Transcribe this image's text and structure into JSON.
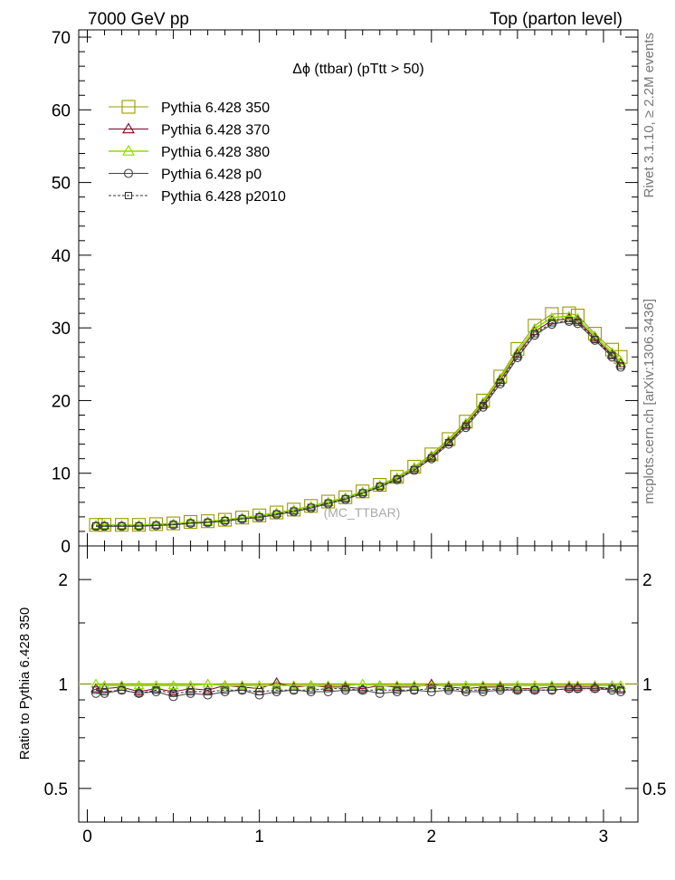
{
  "header": {
    "left": "7000 GeV pp",
    "right": "Top (parton level)"
  },
  "side_labels": {
    "rivet": "Rivet 3.1.10, ≥ 2.2M events",
    "mcplots": "mcplots.cern.ch [arXiv:1306.3436]"
  },
  "colors": {
    "s350": "#999900",
    "s370": "#800020",
    "s380": "#88dd00",
    "p0": "#444444",
    "p2010": "#333333"
  },
  "chart_data": [
    {
      "type": "line",
      "title": "Δϕ (ttbar) (pTtt > 50)",
      "watermark": "(MC_TTBAR)",
      "xlim": [
        -0.05,
        3.2
      ],
      "ylim": [
        0,
        71
      ],
      "yticks": [
        0,
        10,
        20,
        30,
        40,
        50,
        60,
        70
      ],
      "x": [
        0.05,
        0.1,
        0.2,
        0.3,
        0.4,
        0.5,
        0.6,
        0.7,
        0.8,
        0.9,
        1.0,
        1.1,
        1.2,
        1.3,
        1.4,
        1.5,
        1.6,
        1.7,
        1.8,
        1.9,
        2.0,
        2.1,
        2.2,
        2.3,
        2.4,
        2.5,
        2.6,
        2.7,
        2.8,
        2.85,
        2.95,
        3.05,
        3.1
      ],
      "legend": [
        "Pythia 6.428 350",
        "Pythia 6.428 370",
        "Pythia 6.428 380",
        "Pythia 6.428 p0",
        "Pythia 6.428 p2010"
      ],
      "series": [
        {
          "name": "Pythia 6.428 350",
          "key": "s350",
          "marker": "square-big",
          "values": [
            2.9,
            2.9,
            2.9,
            2.9,
            3.0,
            3.1,
            3.3,
            3.4,
            3.6,
            3.9,
            4.2,
            4.6,
            5.0,
            5.5,
            6.1,
            6.7,
            7.5,
            8.4,
            9.5,
            10.9,
            12.6,
            14.7,
            17.1,
            20.0,
            23.3,
            27.1,
            30.3,
            31.9,
            32.0,
            31.7,
            29.2,
            27.0,
            26.0
          ]
        },
        {
          "name": "Pythia 6.428 370",
          "key": "s370",
          "marker": "triangle",
          "values": [
            2.8,
            2.8,
            2.8,
            2.8,
            2.9,
            3.0,
            3.2,
            3.3,
            3.6,
            3.8,
            4.1,
            4.5,
            4.9,
            5.4,
            6.0,
            6.6,
            7.4,
            8.3,
            9.3,
            10.7,
            12.3,
            14.3,
            16.7,
            19.5,
            22.8,
            26.4,
            29.5,
            31.0,
            31.3,
            31.0,
            28.6,
            26.3,
            25.1
          ]
        },
        {
          "name": "Pythia 6.428 380",
          "key": "s380",
          "marker": "triangle",
          "values": [
            2.85,
            2.85,
            2.85,
            2.85,
            2.95,
            3.05,
            3.25,
            3.35,
            3.6,
            3.85,
            4.15,
            4.55,
            4.95,
            5.45,
            6.05,
            6.65,
            7.45,
            8.35,
            9.4,
            10.8,
            12.45,
            14.5,
            16.9,
            19.75,
            23.05,
            26.7,
            29.9,
            31.4,
            31.6,
            31.3,
            28.9,
            26.6,
            25.4
          ]
        },
        {
          "name": "Pythia 6.428 p0",
          "key": "p0",
          "marker": "circle",
          "values": [
            2.7,
            2.7,
            2.7,
            2.7,
            2.8,
            2.9,
            3.1,
            3.2,
            3.4,
            3.7,
            3.9,
            4.3,
            4.7,
            5.2,
            5.8,
            6.4,
            7.2,
            8.1,
            9.1,
            10.4,
            12.0,
            14.0,
            16.3,
            19.1,
            22.3,
            25.9,
            29.0,
            30.5,
            30.9,
            30.6,
            28.3,
            26.0,
            24.6
          ]
        },
        {
          "name": "Pythia 6.428 p2010",
          "key": "p2010",
          "marker": "square-small",
          "dashed": true,
          "values": [
            2.75,
            2.75,
            2.75,
            2.75,
            2.85,
            2.95,
            3.15,
            3.25,
            3.5,
            3.75,
            4.0,
            4.4,
            4.8,
            5.3,
            5.9,
            6.5,
            7.3,
            8.2,
            9.2,
            10.5,
            12.1,
            14.2,
            16.5,
            19.3,
            22.5,
            26.1,
            29.2,
            30.7,
            31.0,
            30.8,
            28.4,
            26.2,
            24.8
          ]
        }
      ]
    },
    {
      "type": "line",
      "ylabel": "Ratio to Pythia 6.428 350",
      "xlim": [
        -0.05,
        3.2
      ],
      "ylim": [
        0.4,
        2.5
      ],
      "ylog": true,
      "yticks": [
        0.5,
        1,
        2
      ],
      "ytick_labels": [
        "0.5",
        "1",
        "2"
      ],
      "xticks": [
        0,
        1,
        2,
        3
      ],
      "xtick_labels": [
        "0",
        "1",
        "2",
        "3"
      ],
      "x": [
        0.05,
        0.1,
        0.2,
        0.3,
        0.4,
        0.5,
        0.6,
        0.7,
        0.8,
        0.9,
        1.0,
        1.1,
        1.2,
        1.3,
        1.4,
        1.5,
        1.6,
        1.7,
        1.8,
        1.9,
        2.0,
        2.1,
        2.2,
        2.3,
        2.4,
        2.5,
        2.6,
        2.7,
        2.8,
        2.85,
        2.95,
        3.05,
        3.1
      ],
      "series": [
        {
          "name": "Pythia 6.428 350",
          "key": "s350",
          "marker": "none",
          "values": [
            1,
            1,
            1,
            1,
            1,
            1,
            1,
            1,
            1,
            1,
            1,
            1,
            1,
            1,
            1,
            1,
            1,
            1,
            1,
            1,
            1,
            1,
            1,
            1,
            1,
            1,
            1,
            1,
            1,
            1,
            1,
            1,
            1
          ]
        },
        {
          "name": "Pythia 6.428 370",
          "key": "s370",
          "marker": "triangle",
          "values": [
            0.97,
            0.97,
            0.98,
            0.95,
            0.97,
            0.95,
            0.97,
            0.96,
            0.99,
            0.98,
            0.97,
            1.01,
            0.98,
            0.99,
            0.98,
            0.98,
            0.97,
            0.99,
            0.98,
            0.98,
            1.0,
            0.98,
            0.97,
            0.98,
            0.98,
            0.97,
            0.97,
            0.98,
            0.98,
            0.98,
            0.98,
            0.97,
            0.97
          ]
        },
        {
          "name": "Pythia 6.428 380",
          "key": "s380",
          "marker": "triangle",
          "values": [
            1.0,
            0.99,
            0.99,
            0.99,
            0.99,
            0.99,
            0.99,
            1.0,
            0.99,
            0.99,
            0.99,
            0.99,
            0.99,
            0.99,
            0.99,
            0.99,
            1.0,
            0.99,
            0.99,
            0.99,
            0.99,
            0.99,
            0.99,
            0.99,
            0.99,
            0.99,
            0.99,
            0.99,
            0.99,
            0.99,
            0.99,
            0.99,
            0.99
          ]
        },
        {
          "name": "Pythia 6.428 p0",
          "key": "p0",
          "marker": "circle",
          "values": [
            0.94,
            0.94,
            0.96,
            0.94,
            0.95,
            0.92,
            0.94,
            0.93,
            0.95,
            0.96,
            0.93,
            0.95,
            0.96,
            0.95,
            0.95,
            0.96,
            0.96,
            0.94,
            0.95,
            0.96,
            0.95,
            0.96,
            0.95,
            0.95,
            0.96,
            0.96,
            0.96,
            0.96,
            0.97,
            0.97,
            0.97,
            0.96,
            0.95
          ]
        },
        {
          "name": "Pythia 6.428 p2010",
          "key": "p2010",
          "marker": "square-small",
          "dashed": true,
          "values": [
            0.96,
            0.95,
            0.96,
            0.94,
            0.96,
            0.94,
            0.95,
            0.95,
            0.96,
            0.96,
            0.95,
            0.96,
            0.96,
            0.96,
            0.97,
            0.97,
            0.96,
            0.96,
            0.96,
            0.96,
            0.97,
            0.97,
            0.96,
            0.96,
            0.97,
            0.96,
            0.96,
            0.96,
            0.97,
            0.97,
            0.97,
            0.97,
            0.96
          ]
        }
      ]
    }
  ]
}
